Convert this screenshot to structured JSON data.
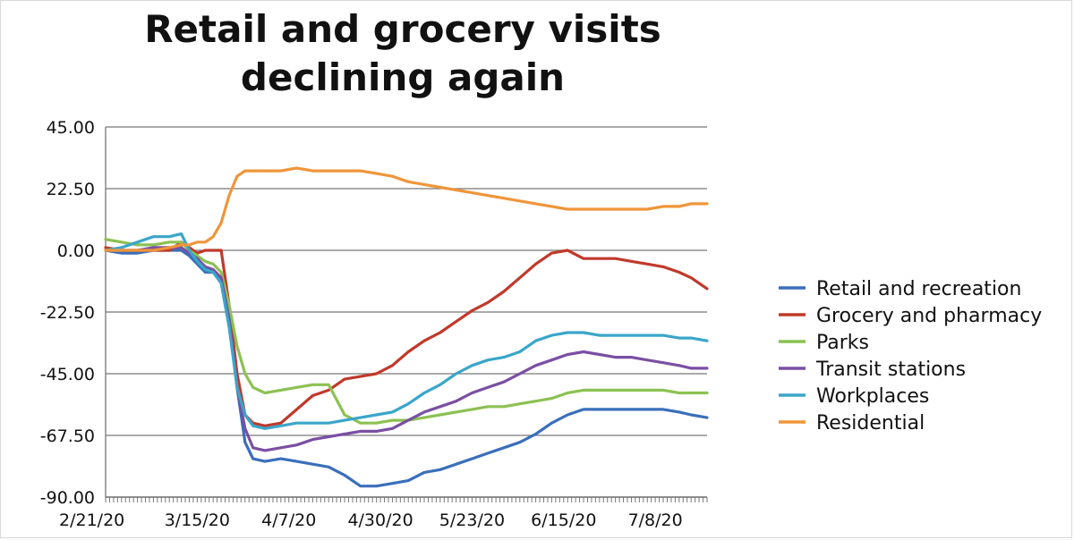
{
  "chart_data": {
    "type": "line",
    "title": "Retail and grocery visits declining again",
    "title_lines": [
      "Retail and grocery visits",
      "declining again"
    ],
    "xlabel": "",
    "ylabel": "",
    "ylim": [
      -90,
      45
    ],
    "yticks": [
      "45.00",
      "22.50",
      "0.00",
      "-22.50",
      "-45.00",
      "-67.50",
      "-90.00"
    ],
    "ytick_values": [
      45,
      22.5,
      0,
      -22.5,
      -45,
      -67.5,
      -90
    ],
    "x_start": "2020-02-21",
    "x_end": "2020-07-21",
    "xticks": [
      {
        "label": "2/21/20",
        "date": "2020-02-21"
      },
      {
        "label": "3/15/20",
        "date": "2020-03-15"
      },
      {
        "label": "4/7/20",
        "date": "2020-04-07"
      },
      {
        "label": "4/30/20",
        "date": "2020-04-30"
      },
      {
        "label": "5/23/20",
        "date": "2020-05-23"
      },
      {
        "label": "6/15/20",
        "date": "2020-06-15"
      },
      {
        "label": "7/8/20",
        "date": "2020-07-08"
      }
    ],
    "grid": true,
    "legend_position": "right",
    "series": [
      {
        "name": "Retail and recreation",
        "color": "#3a6fba",
        "points": [
          [
            "2020-02-21",
            0
          ],
          [
            "2020-02-25",
            -1
          ],
          [
            "2020-02-29",
            -1
          ],
          [
            "2020-03-04",
            0
          ],
          [
            "2020-03-08",
            0
          ],
          [
            "2020-03-11",
            0
          ],
          [
            "2020-03-13",
            -2
          ],
          [
            "2020-03-15",
            -5
          ],
          [
            "2020-03-17",
            -8
          ],
          [
            "2020-03-19",
            -8
          ],
          [
            "2020-03-21",
            -10
          ],
          [
            "2020-03-23",
            -25
          ],
          [
            "2020-03-25",
            -50
          ],
          [
            "2020-03-27",
            -70
          ],
          [
            "2020-03-29",
            -76
          ],
          [
            "2020-04-01",
            -77
          ],
          [
            "2020-04-05",
            -76
          ],
          [
            "2020-04-09",
            -77
          ],
          [
            "2020-04-13",
            -78
          ],
          [
            "2020-04-17",
            -79
          ],
          [
            "2020-04-21",
            -82
          ],
          [
            "2020-04-25",
            -86
          ],
          [
            "2020-04-29",
            -86
          ],
          [
            "2020-05-03",
            -85
          ],
          [
            "2020-05-07",
            -84
          ],
          [
            "2020-05-11",
            -81
          ],
          [
            "2020-05-15",
            -80
          ],
          [
            "2020-05-19",
            -78
          ],
          [
            "2020-05-23",
            -76
          ],
          [
            "2020-05-27",
            -74
          ],
          [
            "2020-05-31",
            -72
          ],
          [
            "2020-06-04",
            -70
          ],
          [
            "2020-06-08",
            -67
          ],
          [
            "2020-06-12",
            -63
          ],
          [
            "2020-06-16",
            -60
          ],
          [
            "2020-06-20",
            -58
          ],
          [
            "2020-06-24",
            -58
          ],
          [
            "2020-06-28",
            -58
          ],
          [
            "2020-07-02",
            -58
          ],
          [
            "2020-07-06",
            -58
          ],
          [
            "2020-07-10",
            -58
          ],
          [
            "2020-07-14",
            -59
          ],
          [
            "2020-07-17",
            -60
          ],
          [
            "2020-07-21",
            -61
          ]
        ]
      },
      {
        "name": "Grocery and pharmacy",
        "color": "#c0392b",
        "points": [
          [
            "2020-02-21",
            1
          ],
          [
            "2020-02-25",
            0
          ],
          [
            "2020-02-29",
            0
          ],
          [
            "2020-03-04",
            0
          ],
          [
            "2020-03-08",
            0
          ],
          [
            "2020-03-11",
            3
          ],
          [
            "2020-03-13",
            1
          ],
          [
            "2020-03-15",
            -1
          ],
          [
            "2020-03-17",
            0
          ],
          [
            "2020-03-19",
            0
          ],
          [
            "2020-03-21",
            0
          ],
          [
            "2020-03-23",
            -20
          ],
          [
            "2020-03-25",
            -45
          ],
          [
            "2020-03-27",
            -60
          ],
          [
            "2020-03-29",
            -63
          ],
          [
            "2020-04-01",
            -64
          ],
          [
            "2020-04-05",
            -63
          ],
          [
            "2020-04-09",
            -58
          ],
          [
            "2020-04-13",
            -53
          ],
          [
            "2020-04-17",
            -51
          ],
          [
            "2020-04-21",
            -47
          ],
          [
            "2020-04-25",
            -46
          ],
          [
            "2020-04-29",
            -45
          ],
          [
            "2020-05-03",
            -42
          ],
          [
            "2020-05-07",
            -37
          ],
          [
            "2020-05-11",
            -33
          ],
          [
            "2020-05-15",
            -30
          ],
          [
            "2020-05-19",
            -26
          ],
          [
            "2020-05-23",
            -22
          ],
          [
            "2020-05-27",
            -19
          ],
          [
            "2020-05-31",
            -15
          ],
          [
            "2020-06-04",
            -10
          ],
          [
            "2020-06-08",
            -5
          ],
          [
            "2020-06-12",
            -1
          ],
          [
            "2020-06-16",
            0
          ],
          [
            "2020-06-20",
            -3
          ],
          [
            "2020-06-24",
            -3
          ],
          [
            "2020-06-28",
            -3
          ],
          [
            "2020-07-02",
            -4
          ],
          [
            "2020-07-06",
            -5
          ],
          [
            "2020-07-10",
            -6
          ],
          [
            "2020-07-14",
            -8
          ],
          [
            "2020-07-17",
            -10
          ],
          [
            "2020-07-21",
            -14
          ]
        ]
      },
      {
        "name": "Parks",
        "color": "#8cc152",
        "points": [
          [
            "2020-02-21",
            4
          ],
          [
            "2020-02-25",
            3
          ],
          [
            "2020-02-29",
            2
          ],
          [
            "2020-03-04",
            2
          ],
          [
            "2020-03-08",
            3
          ],
          [
            "2020-03-11",
            3
          ],
          [
            "2020-03-13",
            0
          ],
          [
            "2020-03-15",
            -2
          ],
          [
            "2020-03-17",
            -4
          ],
          [
            "2020-03-19",
            -5
          ],
          [
            "2020-03-21",
            -8
          ],
          [
            "2020-03-23",
            -20
          ],
          [
            "2020-03-25",
            -35
          ],
          [
            "2020-03-27",
            -45
          ],
          [
            "2020-03-29",
            -50
          ],
          [
            "2020-04-01",
            -52
          ],
          [
            "2020-04-05",
            -51
          ],
          [
            "2020-04-09",
            -50
          ],
          [
            "2020-04-13",
            -49
          ],
          [
            "2020-04-17",
            -49
          ],
          [
            "2020-04-21",
            -60
          ],
          [
            "2020-04-25",
            -63
          ],
          [
            "2020-04-29",
            -63
          ],
          [
            "2020-05-03",
            -62
          ],
          [
            "2020-05-07",
            -62
          ],
          [
            "2020-05-11",
            -61
          ],
          [
            "2020-05-15",
            -60
          ],
          [
            "2020-05-19",
            -59
          ],
          [
            "2020-05-23",
            -58
          ],
          [
            "2020-05-27",
            -57
          ],
          [
            "2020-05-31",
            -57
          ],
          [
            "2020-06-04",
            -56
          ],
          [
            "2020-06-08",
            -55
          ],
          [
            "2020-06-12",
            -54
          ],
          [
            "2020-06-16",
            -52
          ],
          [
            "2020-06-20",
            -51
          ],
          [
            "2020-06-24",
            -51
          ],
          [
            "2020-06-28",
            -51
          ],
          [
            "2020-07-02",
            -51
          ],
          [
            "2020-07-06",
            -51
          ],
          [
            "2020-07-10",
            -51
          ],
          [
            "2020-07-14",
            -52
          ],
          [
            "2020-07-17",
            -52
          ],
          [
            "2020-07-21",
            -52
          ]
        ]
      },
      {
        "name": "Transit stations",
        "color": "#7a4fa3",
        "points": [
          [
            "2020-02-21",
            0
          ],
          [
            "2020-02-25",
            0
          ],
          [
            "2020-02-29",
            0
          ],
          [
            "2020-03-04",
            1
          ],
          [
            "2020-03-08",
            1
          ],
          [
            "2020-03-11",
            1
          ],
          [
            "2020-03-13",
            -1
          ],
          [
            "2020-03-15",
            -3
          ],
          [
            "2020-03-17",
            -6
          ],
          [
            "2020-03-19",
            -7
          ],
          [
            "2020-03-21",
            -10
          ],
          [
            "2020-03-23",
            -25
          ],
          [
            "2020-03-25",
            -50
          ],
          [
            "2020-03-27",
            -65
          ],
          [
            "2020-03-29",
            -72
          ],
          [
            "2020-04-01",
            -73
          ],
          [
            "2020-04-05",
            -72
          ],
          [
            "2020-04-09",
            -71
          ],
          [
            "2020-04-13",
            -69
          ],
          [
            "2020-04-17",
            -68
          ],
          [
            "2020-04-21",
            -67
          ],
          [
            "2020-04-25",
            -66
          ],
          [
            "2020-04-29",
            -66
          ],
          [
            "2020-05-03",
            -65
          ],
          [
            "2020-05-07",
            -62
          ],
          [
            "2020-05-11",
            -59
          ],
          [
            "2020-05-15",
            -57
          ],
          [
            "2020-05-19",
            -55
          ],
          [
            "2020-05-23",
            -52
          ],
          [
            "2020-05-27",
            -50
          ],
          [
            "2020-05-31",
            -48
          ],
          [
            "2020-06-04",
            -45
          ],
          [
            "2020-06-08",
            -42
          ],
          [
            "2020-06-12",
            -40
          ],
          [
            "2020-06-16",
            -38
          ],
          [
            "2020-06-20",
            -37
          ],
          [
            "2020-06-24",
            -38
          ],
          [
            "2020-06-28",
            -39
          ],
          [
            "2020-07-02",
            -39
          ],
          [
            "2020-07-06",
            -40
          ],
          [
            "2020-07-10",
            -41
          ],
          [
            "2020-07-14",
            -42
          ],
          [
            "2020-07-17",
            -43
          ],
          [
            "2020-07-21",
            -43
          ]
        ]
      },
      {
        "name": "Workplaces",
        "color": "#3aa6c9",
        "points": [
          [
            "2020-02-21",
            0
          ],
          [
            "2020-02-25",
            1
          ],
          [
            "2020-02-29",
            3
          ],
          [
            "2020-03-04",
            5
          ],
          [
            "2020-03-08",
            5
          ],
          [
            "2020-03-11",
            6
          ],
          [
            "2020-03-13",
            0
          ],
          [
            "2020-03-15",
            -4
          ],
          [
            "2020-03-17",
            -7
          ],
          [
            "2020-03-19",
            -8
          ],
          [
            "2020-03-21",
            -12
          ],
          [
            "2020-03-23",
            -28
          ],
          [
            "2020-03-25",
            -50
          ],
          [
            "2020-03-27",
            -60
          ],
          [
            "2020-03-29",
            -64
          ],
          [
            "2020-04-01",
            -65
          ],
          [
            "2020-04-05",
            -64
          ],
          [
            "2020-04-09",
            -63
          ],
          [
            "2020-04-13",
            -63
          ],
          [
            "2020-04-17",
            -63
          ],
          [
            "2020-04-21",
            -62
          ],
          [
            "2020-04-25",
            -61
          ],
          [
            "2020-04-29",
            -60
          ],
          [
            "2020-05-03",
            -59
          ],
          [
            "2020-05-07",
            -56
          ],
          [
            "2020-05-11",
            -52
          ],
          [
            "2020-05-15",
            -49
          ],
          [
            "2020-05-19",
            -45
          ],
          [
            "2020-05-23",
            -42
          ],
          [
            "2020-05-27",
            -40
          ],
          [
            "2020-05-31",
            -39
          ],
          [
            "2020-06-04",
            -37
          ],
          [
            "2020-06-08",
            -33
          ],
          [
            "2020-06-12",
            -31
          ],
          [
            "2020-06-16",
            -30
          ],
          [
            "2020-06-20",
            -30
          ],
          [
            "2020-06-24",
            -31
          ],
          [
            "2020-06-28",
            -31
          ],
          [
            "2020-07-02",
            -31
          ],
          [
            "2020-07-06",
            -31
          ],
          [
            "2020-07-10",
            -31
          ],
          [
            "2020-07-14",
            -32
          ],
          [
            "2020-07-17",
            -32
          ],
          [
            "2020-07-21",
            -33
          ]
        ]
      },
      {
        "name": "Residential",
        "color": "#f0953a",
        "points": [
          [
            "2020-02-21",
            0
          ],
          [
            "2020-02-25",
            0
          ],
          [
            "2020-02-29",
            0
          ],
          [
            "2020-03-04",
            0
          ],
          [
            "2020-03-08",
            1
          ],
          [
            "2020-03-11",
            2
          ],
          [
            "2020-03-13",
            2
          ],
          [
            "2020-03-15",
            3
          ],
          [
            "2020-03-17",
            3
          ],
          [
            "2020-03-19",
            5
          ],
          [
            "2020-03-21",
            10
          ],
          [
            "2020-03-23",
            20
          ],
          [
            "2020-03-25",
            27
          ],
          [
            "2020-03-27",
            29
          ],
          [
            "2020-03-29",
            29
          ],
          [
            "2020-04-01",
            29
          ],
          [
            "2020-04-05",
            29
          ],
          [
            "2020-04-09",
            30
          ],
          [
            "2020-04-13",
            29
          ],
          [
            "2020-04-17",
            29
          ],
          [
            "2020-04-21",
            29
          ],
          [
            "2020-04-25",
            29
          ],
          [
            "2020-04-29",
            28
          ],
          [
            "2020-05-03",
            27
          ],
          [
            "2020-05-07",
            25
          ],
          [
            "2020-05-11",
            24
          ],
          [
            "2020-05-15",
            23
          ],
          [
            "2020-05-19",
            22
          ],
          [
            "2020-05-23",
            21
          ],
          [
            "2020-05-27",
            20
          ],
          [
            "2020-05-31",
            19
          ],
          [
            "2020-06-04",
            18
          ],
          [
            "2020-06-08",
            17
          ],
          [
            "2020-06-12",
            16
          ],
          [
            "2020-06-16",
            15
          ],
          [
            "2020-06-20",
            15
          ],
          [
            "2020-06-24",
            15
          ],
          [
            "2020-06-28",
            15
          ],
          [
            "2020-07-02",
            15
          ],
          [
            "2020-07-06",
            15
          ],
          [
            "2020-07-10",
            16
          ],
          [
            "2020-07-14",
            16
          ],
          [
            "2020-07-17",
            17
          ],
          [
            "2020-07-21",
            17
          ]
        ]
      }
    ]
  }
}
